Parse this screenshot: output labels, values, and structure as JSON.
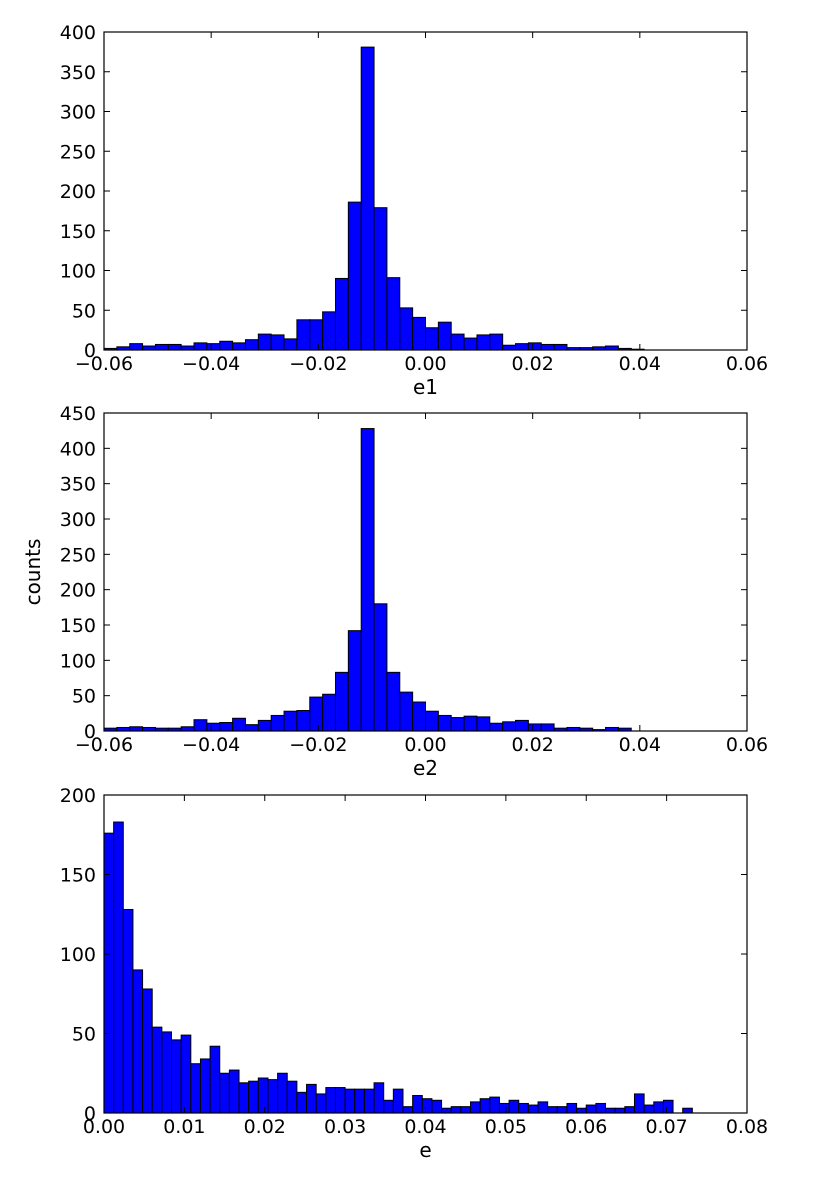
{
  "colors": {
    "bar_fill": "#0000ff",
    "bar_edge": "#000000",
    "background": "#ffffff"
  },
  "shared_ylabel": "counts",
  "chart_data": [
    {
      "type": "bar",
      "xlabel": "e1",
      "ylabel": "",
      "xlim": [
        -0.06,
        0.06
      ],
      "ylim": [
        0,
        400
      ],
      "x_ticks": [
        -0.06,
        -0.04,
        -0.02,
        0.0,
        0.02,
        0.04,
        0.06
      ],
      "x_tick_labels": [
        "−0.06",
        "−0.04",
        "−0.02",
        "0.00",
        "0.02",
        "0.04",
        "0.06"
      ],
      "y_ticks": [
        0,
        50,
        100,
        150,
        200,
        250,
        300,
        350,
        400
      ],
      "y_tick_labels": [
        "0",
        "50",
        "100",
        "150",
        "200",
        "250",
        "300",
        "350",
        "400"
      ],
      "bin_start": -0.06,
      "bin_width": 0.0024,
      "values": [
        2,
        4,
        8,
        5,
        7,
        7,
        5,
        9,
        8,
        11,
        9,
        13,
        20,
        19,
        14,
        38,
        38,
        48,
        90,
        186,
        381,
        179,
        91,
        53,
        41,
        28,
        35,
        20,
        15,
        19,
        20,
        6,
        8,
        9,
        7,
        7,
        3,
        3,
        4,
        5,
        2,
        1
      ]
    },
    {
      "type": "bar",
      "xlabel": "e2",
      "ylabel": "counts",
      "xlim": [
        -0.06,
        0.06
      ],
      "ylim": [
        0,
        450
      ],
      "x_ticks": [
        -0.06,
        -0.04,
        -0.02,
        0.0,
        0.02,
        0.04,
        0.06
      ],
      "x_tick_labels": [
        "−0.06",
        "−0.04",
        "−0.02",
        "0.00",
        "0.02",
        "0.04",
        "0.06"
      ],
      "y_ticks": [
        0,
        50,
        100,
        150,
        200,
        250,
        300,
        350,
        400,
        450
      ],
      "y_tick_labels": [
        "0",
        "50",
        "100",
        "150",
        "200",
        "250",
        "300",
        "350",
        "400",
        "450"
      ],
      "bin_start": -0.06,
      "bin_width": 0.0024,
      "values": [
        4,
        5,
        6,
        5,
        4,
        4,
        6,
        16,
        11,
        12,
        18,
        9,
        15,
        22,
        28,
        29,
        48,
        52,
        83,
        142,
        428,
        180,
        83,
        55,
        41,
        28,
        22,
        19,
        21,
        20,
        11,
        13,
        15,
        10,
        10,
        4,
        5,
        4,
        2,
        5,
        4
      ]
    },
    {
      "type": "bar",
      "xlabel": "e",
      "ylabel": "",
      "xlim": [
        0.0,
        0.08
      ],
      "ylim": [
        0,
        200
      ],
      "x_ticks": [
        0.0,
        0.01,
        0.02,
        0.03,
        0.04,
        0.05,
        0.06,
        0.07,
        0.08
      ],
      "x_tick_labels": [
        "0.00",
        "0.01",
        "0.02",
        "0.03",
        "0.04",
        "0.05",
        "0.06",
        "0.07",
        "0.08"
      ],
      "y_ticks": [
        0,
        50,
        100,
        150,
        200
      ],
      "y_tick_labels": [
        "0",
        "50",
        "100",
        "150",
        "200"
      ],
      "bin_start": 0.0,
      "bin_width": 0.0012,
      "values": [
        176,
        183,
        128,
        90,
        78,
        54,
        51,
        46,
        49,
        31,
        34,
        42,
        25,
        27,
        19,
        20,
        22,
        21,
        25,
        20,
        13,
        18,
        12,
        16,
        16,
        15,
        15,
        15,
        19,
        8,
        15,
        4,
        11,
        9,
        8,
        3,
        4,
        4,
        7,
        9,
        10,
        6,
        8,
        6,
        5,
        7,
        4,
        4,
        6,
        3,
        5,
        6,
        3,
        3,
        4,
        12,
        5,
        7,
        8,
        0,
        3
      ]
    }
  ]
}
